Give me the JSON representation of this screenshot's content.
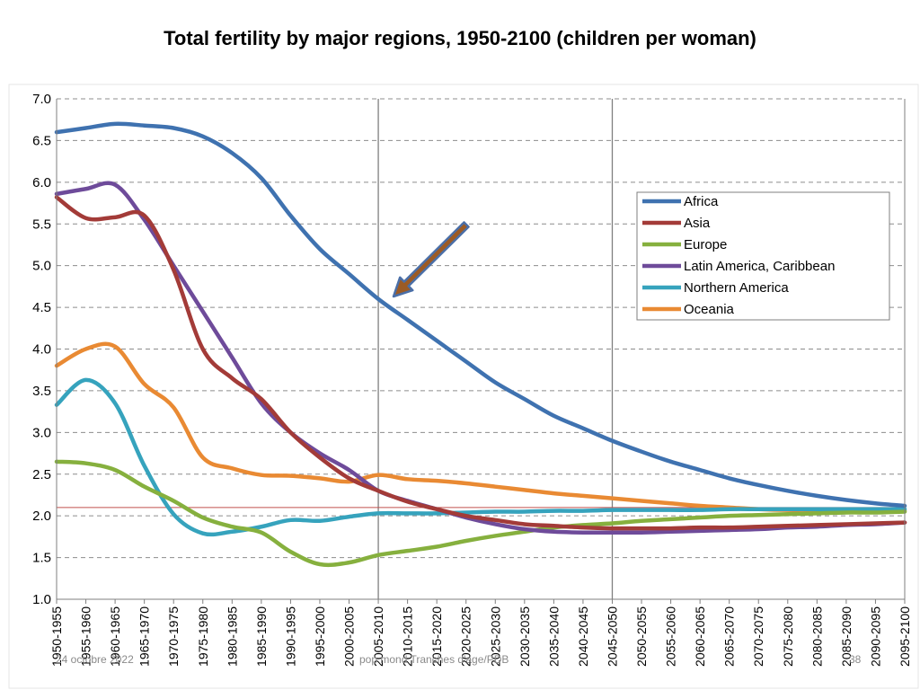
{
  "slide": {
    "title": "Total fertility by major regions, 1950-2100 (children per woman)",
    "footer_date": "24 octobre 2022",
    "footer_center": "pop mond Tranches d'age/PDB",
    "footer_page": "38"
  },
  "colors": {
    "Africa": "#3f72b0",
    "Asia": "#a33b38",
    "Europe": "#86b03e",
    "Latin America, Caribbean": "#6e4b9a",
    "Northern America": "#36a3bd",
    "Oceania": "#e98a33",
    "replacement": "#c0504d",
    "arrow_fill": "#9c5b25",
    "arrow_outline": "#4a6fa8"
  },
  "chart_data": {
    "type": "line",
    "title": "Total fertility by major regions, 1950-2100 (children per woman)",
    "xlabel": "",
    "ylabel": "",
    "ylim": [
      1.0,
      7.0
    ],
    "yticks": [
      "1.0",
      "1.5",
      "2.0",
      "2.5",
      "3.0",
      "3.5",
      "4.0",
      "4.5",
      "5.0",
      "5.5",
      "6.0",
      "6.5",
      "7.0"
    ],
    "categories": [
      "1950-1955",
      "1955-1960",
      "1960-1965",
      "1965-1970",
      "1970-1975",
      "1975-1980",
      "1980-1985",
      "1985-1990",
      "1990-1995",
      "1995-2000",
      "2000-2005",
      "2005-2010",
      "2010-2015",
      "2015-2020",
      "2020-2025",
      "2025-2030",
      "2030-2035",
      "2035-2040",
      "2040-2045",
      "2045-2050",
      "2050-2055",
      "2055-2060",
      "2060-2065",
      "2065-2070",
      "2070-2075",
      "2075-2080",
      "2080-2085",
      "2085-2090",
      "2090-2095",
      "2095-2100"
    ],
    "legend_position": "right",
    "grid": "horizontal dashed",
    "vertical_markers": [
      "2005-2010",
      "2045-2050"
    ],
    "replacement_level": 2.1,
    "annotation": "arrow pointing to Africa at 2005-2010",
    "series": [
      {
        "name": "Africa",
        "values": [
          6.6,
          6.65,
          6.7,
          6.68,
          6.65,
          6.55,
          6.35,
          6.05,
          5.6,
          5.2,
          4.9,
          4.6,
          4.35,
          4.1,
          3.85,
          3.6,
          3.4,
          3.2,
          3.05,
          2.9,
          2.77,
          2.65,
          2.55,
          2.45,
          2.37,
          2.3,
          2.24,
          2.19,
          2.15,
          2.12
        ]
      },
      {
        "name": "Asia",
        "values": [
          5.82,
          5.57,
          5.58,
          5.6,
          4.95,
          4.0,
          3.65,
          3.4,
          3.0,
          2.7,
          2.45,
          2.3,
          2.17,
          2.08,
          2.0,
          1.95,
          1.9,
          1.88,
          1.86,
          1.85,
          1.85,
          1.85,
          1.86,
          1.86,
          1.87,
          1.88,
          1.89,
          1.9,
          1.91,
          1.92
        ]
      },
      {
        "name": "Europe",
        "values": [
          2.65,
          2.63,
          2.55,
          2.35,
          2.18,
          1.98,
          1.87,
          1.8,
          1.57,
          1.42,
          1.44,
          1.53,
          1.58,
          1.63,
          1.7,
          1.76,
          1.81,
          1.86,
          1.89,
          1.91,
          1.94,
          1.96,
          1.98,
          2.0,
          2.01,
          2.02,
          2.03,
          2.04,
          2.04,
          2.05
        ]
      },
      {
        "name": "Latin America, Caribbean",
        "values": [
          5.86,
          5.92,
          5.97,
          5.55,
          5.0,
          4.45,
          3.9,
          3.35,
          3.0,
          2.75,
          2.55,
          2.3,
          2.18,
          2.08,
          1.98,
          1.9,
          1.84,
          1.81,
          1.8,
          1.8,
          1.8,
          1.81,
          1.82,
          1.83,
          1.84,
          1.86,
          1.87,
          1.89,
          1.9,
          1.92
        ]
      },
      {
        "name": "Northern America",
        "values": [
          3.33,
          3.63,
          3.35,
          2.6,
          2.02,
          1.79,
          1.81,
          1.87,
          1.95,
          1.94,
          1.99,
          2.03,
          2.03,
          2.03,
          2.04,
          2.05,
          2.05,
          2.06,
          2.06,
          2.07,
          2.07,
          2.07,
          2.07,
          2.08,
          2.08,
          2.08,
          2.08,
          2.08,
          2.08,
          2.08
        ]
      },
      {
        "name": "Oceania",
        "values": [
          3.8,
          4.0,
          4.03,
          3.58,
          3.3,
          2.7,
          2.57,
          2.49,
          2.48,
          2.45,
          2.41,
          2.49,
          2.44,
          2.42,
          2.39,
          2.35,
          2.31,
          2.27,
          2.24,
          2.21,
          2.18,
          2.15,
          2.12,
          2.1,
          2.08,
          2.07,
          2.07,
          2.06,
          2.06,
          2.06
        ]
      }
    ]
  }
}
